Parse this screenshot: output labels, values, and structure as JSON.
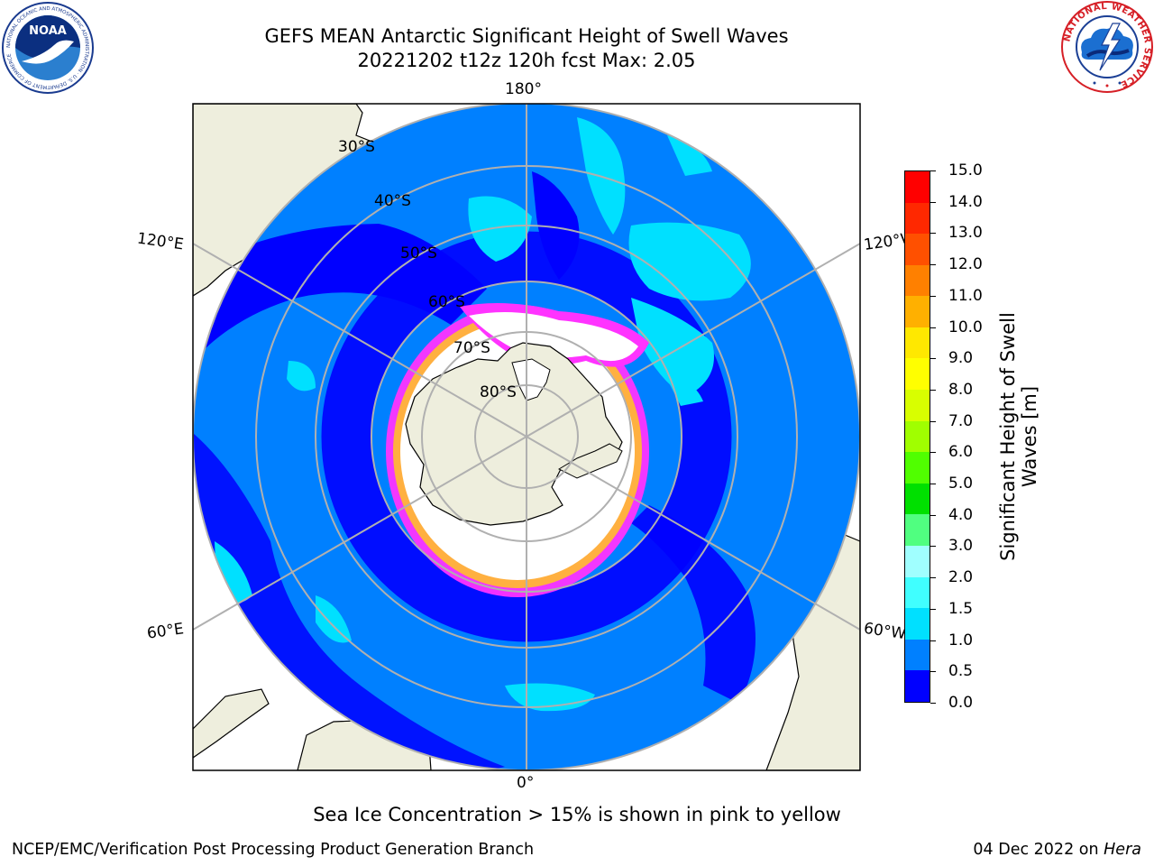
{
  "title": {
    "line1": "GEFS MEAN Antarctic Significant Height of Swell Waves",
    "line2": "20221202 t12z 120h fcst   Max: 2.05"
  },
  "logos": {
    "left": "noaa-logo",
    "left_text": "NOAA",
    "left_ring_text": "NATIONAL OCEANIC AND ATMOSPHERIC ADMINISTRATION · U.S. DEPARTMENT OF COMMERCE",
    "right": "national-weather-service-logo",
    "right_ring_text": "NATIONAL WEATHER SERVICE"
  },
  "map": {
    "projection": "south-polar-stereographic",
    "latitude_labels": [
      "30°S",
      "40°S",
      "50°S",
      "60°S",
      "70°S",
      "80°S"
    ],
    "longitude_labels": {
      "top": "180°",
      "bottom": "0°",
      "upper_left": "120°E",
      "lower_left": "60°E",
      "upper_right": "120°W",
      "lower_right": "60°W"
    },
    "colors": {
      "land": "#eeeedd",
      "background": "#ffffff",
      "grid": "#b0b0b0",
      "ice_low": "#ff33ff",
      "ice_high": "#ffb040"
    }
  },
  "colorbar": {
    "label": "Significant Height of Swell Waves [m]",
    "label_line1": "Significant Height of Swell",
    "label_line2": "Waves [m]",
    "ticks": [
      "0.0",
      "0.5",
      "1.0",
      "1.5",
      "2.0",
      "3.0",
      "4.0",
      "5.0",
      "6.0",
      "7.0",
      "8.0",
      "9.0",
      "10.0",
      "11.0",
      "12.0",
      "13.0",
      "14.0",
      "15.0"
    ],
    "colors": [
      "#0000ff",
      "#0080ff",
      "#00e0ff",
      "#40ffff",
      "#a0ffff",
      "#50ff80",
      "#00e000",
      "#50ff00",
      "#a0ff00",
      "#d8ff00",
      "#ffff00",
      "#ffe800",
      "#ffb000",
      "#ff8000",
      "#ff5000",
      "#ff2800",
      "#ff0000"
    ]
  },
  "chart_data": {
    "type": "heatmap",
    "variable": "Significant Height of Swell Waves",
    "units": "m",
    "max": 2.05,
    "levels": [
      0.0,
      0.5,
      1.0,
      1.5,
      2.0,
      3.0,
      4.0,
      5.0,
      6.0,
      7.0,
      8.0,
      9.0,
      10.0,
      11.0,
      12.0,
      13.0,
      14.0,
      15.0
    ],
    "range": [
      0.0,
      15.0
    ]
  },
  "note": "Sea Ice Concentration > 15% is shown in pink to yellow",
  "footer": {
    "left": "NCEP/EMC/Verification Post Processing Product Generation Branch",
    "right_date": "04 Dec 2022 on",
    "right_host": "Hera"
  }
}
